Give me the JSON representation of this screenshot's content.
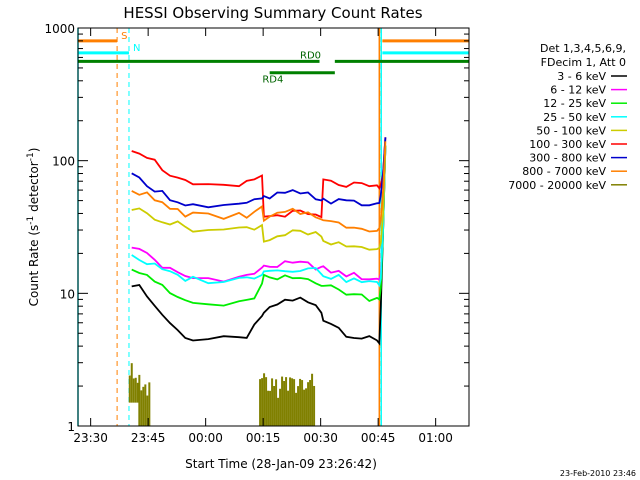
{
  "chart_data": {
    "type": "line",
    "title": "HESSI Observing Summary Count Rates",
    "xlabel": "Start Time (28-Jan-09 23:26:42)",
    "ylabel_main": "Count Rate (s",
    "ylabel_sup1": "-1",
    "ylabel_mid": " detector",
    "ylabel_sup2": "-1",
    "ylabel_end": ")",
    "y_scale": "log",
    "ylim": [
      1,
      1000
    ],
    "x_unit": "minutes after 23:26:42",
    "xlim": [
      0,
      102
    ],
    "x_ticks": [
      {
        "label": "23:30",
        "x": 3.3
      },
      {
        "label": "23:45",
        "x": 18.3
      },
      {
        "label": "00:00",
        "x": 33.3
      },
      {
        "label": "00:15",
        "x": 48.3
      },
      {
        "label": "00:30",
        "x": 63.3
      },
      {
        "label": "00:45",
        "x": 78.3
      },
      {
        "label": "01:00",
        "x": 93.3
      }
    ],
    "y_ticks": [
      {
        "label": "1",
        "y": 1
      },
      {
        "label": "10",
        "y": 10
      },
      {
        "label": "100",
        "y": 100
      },
      {
        "label": "1000",
        "y": 1000
      }
    ],
    "legend_header": [
      "Det 1,3,4,5,6,9,",
      "FDecim 1, Att 0"
    ],
    "legend_placement": "right",
    "series": [
      {
        "name": "3 - 6 keV",
        "color": "#000000",
        "x": [
          14,
          16,
          18,
          20,
          22,
          24,
          26,
          28,
          30,
          34,
          38,
          42,
          44,
          46,
          48,
          48.5,
          50,
          52,
          54,
          56,
          58,
          60,
          62,
          63.5,
          64,
          66,
          68,
          70,
          72,
          74,
          76,
          78,
          78.6,
          79,
          79.6,
          80.2
        ],
        "y": [
          12,
          11,
          10,
          8,
          7,
          6,
          5.2,
          4.8,
          4.5,
          4.5,
          4.5,
          4.5,
          4.8,
          5.5,
          6.5,
          7.2,
          7.5,
          8.3,
          8.8,
          9,
          9,
          8.5,
          8,
          7.2,
          6.5,
          6,
          5.5,
          5,
          4.8,
          4.6,
          4.5,
          4.3,
          4.2,
          8,
          30,
          130
        ]
      },
      {
        "name": "6 - 12 keV",
        "color": "#ff00ff",
        "x": [
          14,
          16,
          18,
          20,
          22,
          24,
          26,
          28,
          30,
          34,
          38,
          42,
          44,
          46,
          48,
          48.5,
          50,
          52,
          54,
          56,
          58,
          60,
          62,
          63.5,
          64,
          66,
          68,
          70,
          72,
          74,
          76,
          78,
          78.6,
          79,
          79.6,
          80.2
        ],
        "y": [
          23,
          21,
          20,
          18,
          16,
          15,
          14,
          13.5,
          13,
          13,
          13,
          13.2,
          13.6,
          14.2,
          15,
          16.5,
          16,
          16.3,
          16.5,
          16.6,
          16.6,
          16.4,
          16,
          15.6,
          15.2,
          14.8,
          14.3,
          14,
          13.6,
          13.3,
          13,
          12.8,
          12.7,
          14,
          30,
          130
        ]
      },
      {
        "name": "12 - 25 keV",
        "color": "#00ee00",
        "x": [
          14,
          16,
          18,
          20,
          22,
          24,
          26,
          28,
          30,
          34,
          38,
          42,
          44,
          46,
          48,
          48.5,
          50,
          52,
          54,
          56,
          58,
          60,
          62,
          63.5,
          64,
          66,
          68,
          70,
          72,
          74,
          76,
          78,
          78.6,
          79,
          79.6,
          80.2
        ],
        "y": [
          16,
          15,
          14,
          12.5,
          11,
          10,
          9.3,
          8.8,
          8.4,
          8.2,
          8.2,
          8.3,
          8.6,
          9.5,
          11.5,
          13.5,
          12.5,
          12.8,
          13,
          13,
          13,
          12.8,
          12.5,
          12,
          11.5,
          11,
          10.6,
          10.2,
          9.8,
          9.5,
          9.3,
          9.1,
          9,
          11,
          30,
          130
        ]
      },
      {
        "name": "25 - 50 keV",
        "color": "#00ffff",
        "x": [
          14,
          16,
          18,
          20,
          22,
          24,
          26,
          28,
          30,
          34,
          38,
          42,
          44,
          46,
          48,
          48.5,
          50,
          52,
          54,
          56,
          58,
          60,
          62,
          63.5,
          64,
          66,
          68,
          70,
          72,
          74,
          76,
          78,
          78.6,
          79,
          79.6,
          80.2
        ],
        "y": [
          20,
          18,
          17,
          16,
          15,
          14,
          13.5,
          13,
          12.8,
          12.6,
          12.5,
          12.7,
          13,
          13.5,
          14.5,
          15.2,
          14.8,
          15,
          15.3,
          15.4,
          15.4,
          15.2,
          15,
          14.5,
          14,
          13.5,
          13,
          12.8,
          12.5,
          12.3,
          12,
          11.7,
          11.5,
          13,
          32,
          130
        ]
      },
      {
        "name": "50 - 100 keV",
        "color": "#cccc00",
        "x": [
          14,
          16,
          18,
          20,
          22,
          24,
          26,
          28,
          30,
          34,
          38,
          42,
          44,
          46,
          48,
          48.5,
          50,
          52,
          54,
          56,
          58,
          60,
          62,
          63.5,
          64,
          66,
          68,
          70,
          72,
          74,
          76,
          78,
          78.6,
          79,
          79.6,
          80.2
        ],
        "y": [
          44,
          42,
          40,
          38,
          36,
          34,
          33,
          32,
          31,
          30,
          30,
          30.5,
          31,
          32,
          33,
          25,
          26,
          27,
          28,
          28.5,
          28.5,
          28,
          27.5,
          27,
          24,
          23.5,
          23,
          22.8,
          22.5,
          22.2,
          22,
          21.8,
          22,
          24,
          40,
          130
        ]
      },
      {
        "name": "100 - 300 keV",
        "color": "#ff0000",
        "x": [
          14,
          16,
          18,
          20,
          22,
          24,
          26,
          28,
          30,
          34,
          38,
          42,
          44,
          46,
          48,
          48.5,
          50,
          52,
          54,
          56,
          58,
          60,
          62,
          63.5,
          64,
          66,
          68,
          70,
          72,
          74,
          76,
          78,
          78.6,
          79,
          79.6,
          80.2
        ],
        "y": [
          125,
          118,
          110,
          98,
          88,
          80,
          73,
          68,
          65,
          63,
          63,
          64,
          67,
          72,
          79,
          37,
          38,
          39,
          40,
          40,
          40,
          39,
          38,
          37,
          70,
          68,
          67,
          66,
          65,
          64,
          63,
          62,
          62,
          66,
          80,
          150
        ]
      },
      {
        "name": "300 - 800 keV",
        "color": "#0000cc",
        "x": [
          14,
          16,
          18,
          20,
          22,
          24,
          26,
          28,
          30,
          34,
          38,
          42,
          44,
          46,
          48,
          48.5,
          50,
          52,
          54,
          56,
          58,
          60,
          62,
          63.5,
          64,
          66,
          68,
          70,
          72,
          74,
          76,
          78,
          78.6,
          79,
          79.6,
          80.2
        ],
        "y": [
          76,
          72,
          68,
          62,
          57,
          53,
          50,
          48,
          46,
          45,
          45,
          45.5,
          47,
          49,
          52,
          52,
          53,
          55,
          56,
          57,
          56,
          55,
          53,
          52,
          51,
          50,
          49,
          48.5,
          48,
          47.5,
          47,
          47,
          48,
          55,
          80,
          150
        ]
      },
      {
        "name": "800 - 7000 keV",
        "color": "#ff7f00",
        "x": [
          14,
          16,
          18,
          20,
          22,
          24,
          26,
          28,
          30,
          34,
          38,
          42,
          44,
          46,
          48,
          48.5,
          50,
          52,
          54,
          56,
          58,
          60,
          62,
          63.5,
          64,
          66,
          68,
          70,
          72,
          74,
          76,
          78,
          78.6,
          79,
          79.6,
          80.2
        ],
        "y": [
          62,
          58,
          55,
          50,
          47,
          44,
          42,
          40,
          39,
          38,
          38,
          38.5,
          39,
          41,
          43,
          35,
          37,
          39,
          40,
          41,
          41,
          40,
          39,
          38,
          35,
          34,
          33,
          32.5,
          32,
          31.5,
          31,
          30.5,
          31,
          36,
          60,
          140
        ]
      },
      {
        "name": "7000 - 20000 keV",
        "color": "#808000",
        "segments": [
          {
            "x": [
              13.5,
              16
            ],
            "y_low": 1.5,
            "y_high": 3
          },
          {
            "x": [
              16,
              19
            ],
            "y_low": 1,
            "y_high": 2.5
          },
          {
            "x": [
              47.5,
              62
            ],
            "y_low": 1,
            "y_high": 2.5
          }
        ]
      }
    ],
    "markers": [
      {
        "label": "S",
        "color": "#ff7f00",
        "style": "dashed",
        "x_positions": [
          10.2,
          78.7
        ],
        "bar_y": 800,
        "bar_segments": [
          [
            0,
            10.2
          ],
          [
            79.4,
            102
          ]
        ]
      },
      {
        "label": "N",
        "color": "#00ffff",
        "style": "dashed",
        "x_positions": [
          13.3,
          102
        ],
        "bar_y": 650,
        "bar_segments": [
          [
            0,
            13.3
          ],
          [
            79.4,
            102
          ]
        ]
      }
    ],
    "attenuator_bars": [
      {
        "label": "RD0",
        "color": "#008000",
        "y": 560,
        "segments": [
          [
            0,
            63
          ],
          [
            67,
            102
          ]
        ]
      },
      {
        "label": "RD4",
        "color": "#008000",
        "y": 460,
        "segments": [
          [
            50,
            67
          ]
        ]
      }
    ],
    "vertical_lines": [
      {
        "x": 0,
        "color": "#00ffff",
        "style": "solid"
      },
      {
        "x": 78.6,
        "color": "#ff7f00",
        "style": "solid"
      },
      {
        "x": 79.1,
        "color": "#00ffff",
        "style": "solid"
      }
    ]
  },
  "footer_date": "23-Feb-2010 23:46"
}
